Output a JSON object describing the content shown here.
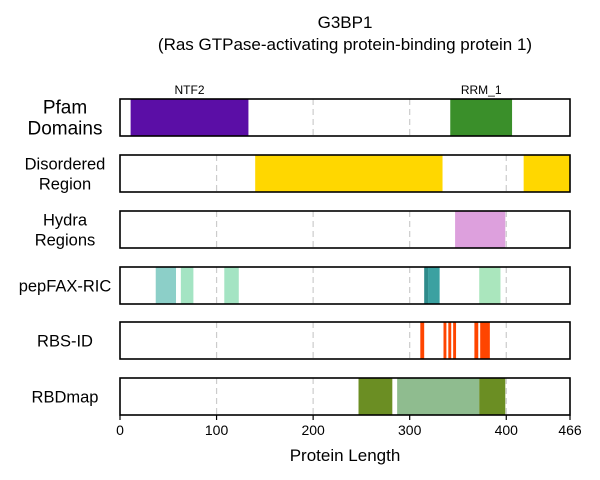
{
  "chart_data": {
    "type": "bar",
    "subtype": "domain-track",
    "title": "G3BP1",
    "subtitle": "(Ras GTPase-activating protein-binding protein 1)",
    "xlabel": "Protein Length",
    "xlim": [
      0,
      466
    ],
    "xticks": [
      0,
      100,
      200,
      300,
      400,
      466
    ],
    "xtick_labels": [
      "0",
      "100",
      "200",
      "300",
      "400",
      "466"
    ],
    "grid": "vertical dashed at 100, 200, 300, 400",
    "tracks": [
      {
        "label_lines": [
          "Pfam",
          "Domains"
        ],
        "segments": [
          {
            "start": 11,
            "end": 133,
            "color": "#5b0ea6",
            "label": "NTF2"
          },
          {
            "start": 342,
            "end": 406,
            "color": "#3a8f2a",
            "label": "RRM_1"
          }
        ]
      },
      {
        "label_lines": [
          "Disordered",
          "Region"
        ],
        "segments": [
          {
            "start": 140,
            "end": 334,
            "color": "#ffd700"
          },
          {
            "start": 418,
            "end": 466,
            "color": "#ffd700"
          }
        ]
      },
      {
        "label_lines": [
          "Hydra",
          "Regions"
        ],
        "segments": [
          {
            "start": 347,
            "end": 399,
            "color": "#dda0dd"
          }
        ]
      },
      {
        "label_lines": [
          "pepFAX-RIC"
        ],
        "segments": [
          {
            "start": 37,
            "end": 58,
            "color": "#8ccfc8"
          },
          {
            "start": 63,
            "end": 76,
            "color": "#a4e4c3"
          },
          {
            "start": 108,
            "end": 123,
            "color": "#a4e4c3"
          },
          {
            "start": 315,
            "end": 319,
            "color": "#2e8b8b"
          },
          {
            "start": 319,
            "end": 331,
            "color": "#3ba1a1"
          },
          {
            "start": 372,
            "end": 394,
            "color": "#aae6bd"
          }
        ]
      },
      {
        "label_lines": [
          "RBS-ID"
        ],
        "segments": [
          {
            "start": 311,
            "end": 315,
            "color": "#ff4500"
          },
          {
            "start": 335,
            "end": 338,
            "color": "#ff4500"
          },
          {
            "start": 340,
            "end": 343,
            "color": "#ff4500"
          },
          {
            "start": 345,
            "end": 348,
            "color": "#ff4500"
          },
          {
            "start": 367,
            "end": 371,
            "color": "#ff4500"
          },
          {
            "start": 373,
            "end": 383,
            "color": "#ff4500"
          }
        ]
      },
      {
        "label_lines": [
          "RBDmap"
        ],
        "segments": [
          {
            "start": 247,
            "end": 282,
            "color": "#6b8e23"
          },
          {
            "start": 287,
            "end": 372,
            "color": "#8fbc8f"
          },
          {
            "start": 372,
            "end": 399,
            "color": "#6b8e23"
          }
        ]
      }
    ]
  }
}
